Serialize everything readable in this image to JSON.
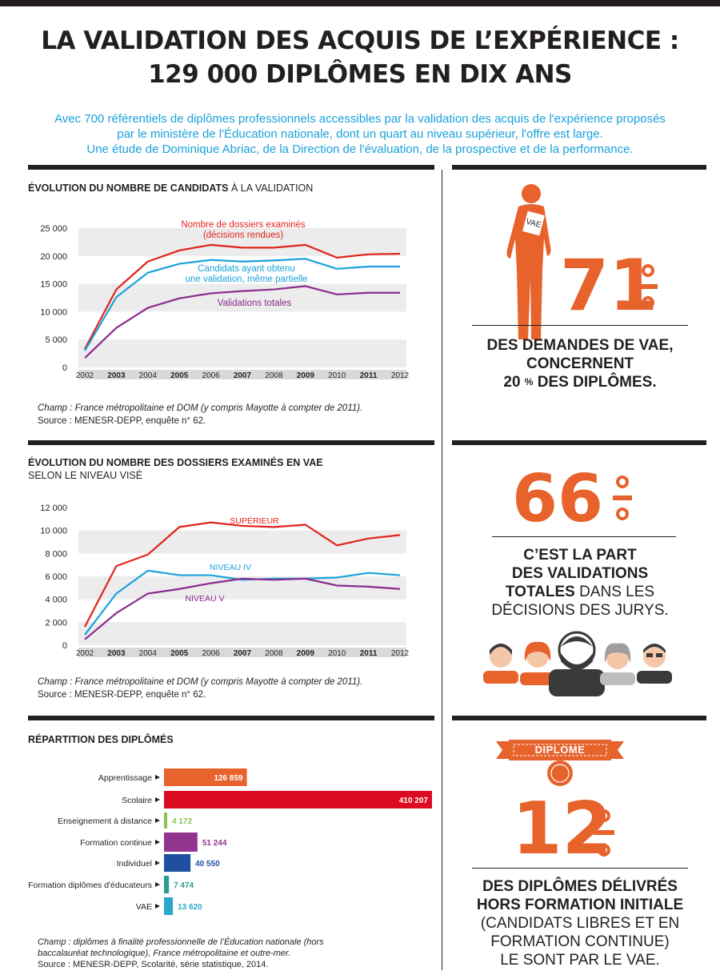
{
  "header": {
    "title_line1": "LA VALIDATION DES ACQUIS DE L’EXPÉRIENCE :",
    "title_line2": "129 000 DIPLÔMES EN DIX ANS",
    "intro_line1": "Avec 700 référentiels de diplômes professionnels accessibles par la validation des acquis de l'expérience proposés",
    "intro_line2": "par le ministère de l'Éducation nationale, dont un quart au niveau supérieur, l'offre est large.",
    "intro_line3": "Une étude de Dominique Abriac, de la Direction de l'évaluation, de la prospective et de la performance."
  },
  "section1": {
    "title_bold": "ÉVOLUTION DU NOMBRE DE CANDIDATS",
    "title_rest": " À LA VALIDATION",
    "note_line1": "Champ : France métropolitaine et DOM (y compris Mayotte à compter de 2011).",
    "note_line2": "Source : MENESR-DEPP, enquête n° 62."
  },
  "section2": {
    "title_line1": "ÉVOLUTION DU NOMBRE DES DOSSIERS EXAMINÉS EN VAE",
    "title_line2": "SELON LE NIVEAU VISÉ",
    "note_line1": "Champ : France métropolitaine et DOM (y compris Mayotte à compter de 2011).",
    "note_line2": "Source : MENESR-DEPP, enquête n° 62."
  },
  "section3": {
    "title": "RÉPARTITION DES DIPLÔMÉS",
    "note_line1": "Champ : diplômes à finalité professionnelle de l’Éducation nationale (hors",
    "note_line2": "baccalauréat technologique), France métropolitaine et outre-mer.",
    "note_line3": "Source : MENESR-DEPP, Scolarité, série statistique, 2014."
  },
  "stat1": {
    "value": "71",
    "line1": "DES DEMANDES DE VAE,",
    "line2": "CONCERNENT",
    "line3_value": "20",
    "line3_rest": " DES DIPLÔMES.",
    "badge": "VAE"
  },
  "stat2": {
    "value": "66",
    "line1": "C’EST LA PART",
    "line2": "DES VALIDATIONS",
    "line3_bold": "TOTALES",
    "line3_rest": " DANS LES",
    "line4": "DÉCISIONS DES JURYS."
  },
  "stat3": {
    "banner": "DIPLOME",
    "value": "12",
    "line1": "DES DIPLÔMES DÉLIVRÉS",
    "line2": "HORS FORMATION INITIALE",
    "line3": "(CANDIDATS LIBRES ET EN",
    "line4": "FORMATION CONTINUE)",
    "line5": "LE SONT PAR LE VAE."
  },
  "colors": {
    "red": "#e2231a",
    "blue": "#1aa1db",
    "purple": "#8b2a8e",
    "orange": "#e8622c",
    "dark": "#231f20"
  },
  "chart_data": [
    {
      "type": "line",
      "x": [
        "2002",
        "2003",
        "2004",
        "2005",
        "2006",
        "2007",
        "2008",
        "2009",
        "2010",
        "2011",
        "2012"
      ],
      "ylim": [
        0,
        25000
      ],
      "yticks": [
        "0",
        "5 000",
        "10 000",
        "15 000",
        "20 000",
        "25 000"
      ],
      "yticks_values": [
        0,
        5000,
        10000,
        15000,
        20000,
        25000
      ],
      "series": [
        {
          "name": "Nombre de dossiers examinés (décisions rendues)",
          "label_line1": "Nombre de dossiers examinés",
          "label_line2": "(décisions rendues)",
          "color": "#e2231a",
          "values": [
            3300,
            14000,
            19000,
            21000,
            22000,
            21500,
            21500,
            22000,
            19700,
            20300,
            20400
          ]
        },
        {
          "name": "Candidats ayant obtenu une validation, même partielle",
          "label_line1": "Candidats ayant obtenu",
          "label_line2": "une validation, même partielle",
          "color": "#1aa1db",
          "values": [
            3000,
            12600,
            17000,
            18600,
            19300,
            19000,
            19200,
            19500,
            17700,
            18100,
            18100
          ]
        },
        {
          "name": "Validations totales",
          "label_line1": "Validations totales",
          "color": "#8b2a8e",
          "values": [
            1700,
            7100,
            10700,
            12400,
            13300,
            13700,
            14000,
            14600,
            13100,
            13400,
            13400
          ]
        }
      ]
    },
    {
      "type": "line",
      "x": [
        "2002",
        "2003",
        "2004",
        "2005",
        "2006",
        "2007",
        "2008",
        "2009",
        "2010",
        "2011",
        "2012"
      ],
      "ylim": [
        0,
        12000
      ],
      "yticks": [
        "0",
        "2 000",
        "4 000",
        "6 000",
        "8 000",
        "10 000",
        "12 000"
      ],
      "yticks_values": [
        0,
        2000,
        4000,
        6000,
        8000,
        10000,
        12000
      ],
      "series": [
        {
          "name": "SUPÉRIEUR",
          "color": "#e2231a",
          "values": [
            1600,
            6900,
            7900,
            10300,
            10700,
            10400,
            10300,
            10500,
            8700,
            9300,
            9600
          ]
        },
        {
          "name": "NIVEAU IV",
          "color": "#1aa1db",
          "values": [
            900,
            4500,
            6500,
            6100,
            6100,
            5700,
            5800,
            5800,
            5900,
            6300,
            6100
          ]
        },
        {
          "name": "NIVEAU V",
          "color": "#8b2a8e",
          "values": [
            500,
            2800,
            4500,
            4900,
            5400,
            5800,
            5700,
            5800,
            5200,
            5100,
            4900
          ]
        }
      ]
    },
    {
      "type": "bar",
      "orientation": "horizontal",
      "categories": [
        "Apprentissage",
        "Scolaire",
        "Enseignement à distance",
        "Formation continue",
        "Individuel",
        "Formation diplômes d'éducateurs",
        "VAE"
      ],
      "values": [
        126859,
        410207,
        4172,
        51244,
        40550,
        7474,
        13620
      ],
      "value_labels": [
        "126 859",
        "410 207",
        "4 172",
        "51 244",
        "40 550",
        "7 474",
        "13 620"
      ],
      "colors": [
        "#e8622c",
        "#dc0a22",
        "#8cc152",
        "#93348f",
        "#1f4fa0",
        "#2a9d8f",
        "#2aa7c9"
      ]
    }
  ]
}
